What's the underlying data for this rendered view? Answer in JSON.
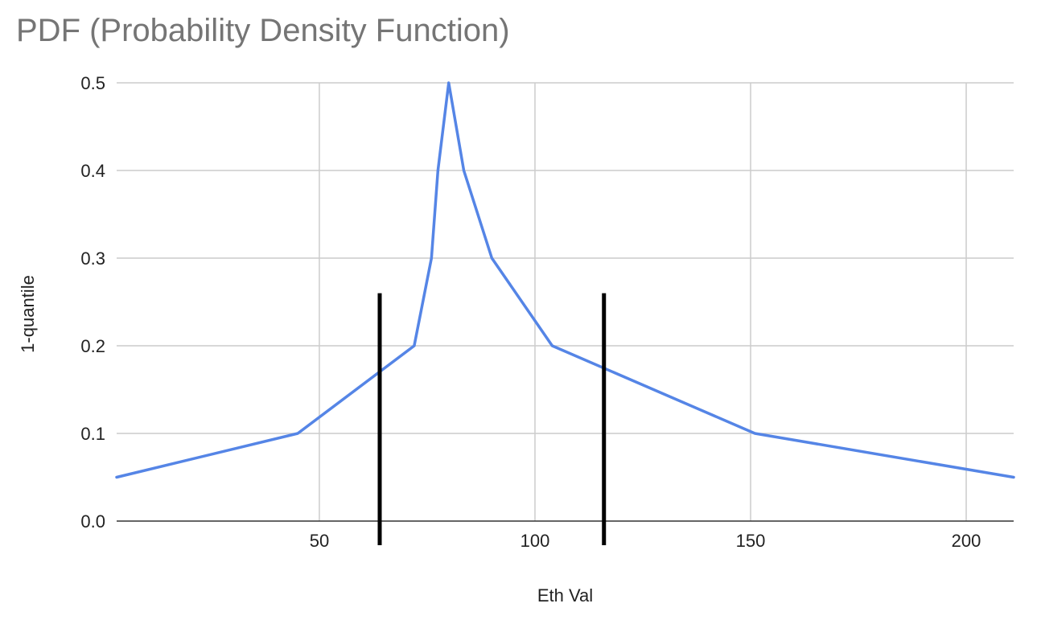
{
  "chart_data": {
    "type": "line",
    "title": "PDF (Probability Density Function)",
    "xlabel": "Eth Val",
    "ylabel": "1-quantile",
    "xlim": [
      3,
      211
    ],
    "ylim": [
      0,
      0.5
    ],
    "x_ticks": [
      50,
      100,
      150,
      200
    ],
    "y_ticks": [
      "0.0",
      "0.1",
      "0.2",
      "0.3",
      "0.4",
      "0.5"
    ],
    "grid": true,
    "legend": "none",
    "colors": {
      "line": "#5585e6",
      "marker": "#000000",
      "grid": "#cccccc",
      "axis": "#333333"
    },
    "series": [
      {
        "x": [
          3,
          45,
          72,
          76,
          77.5,
          80,
          83.5,
          90,
          104,
          151,
          211
        ],
        "y": [
          0.05,
          0.1,
          0.2,
          0.3,
          0.4,
          0.5,
          0.4,
          0.3,
          0.2,
          0.1,
          0.05
        ]
      }
    ],
    "vertical_markers": [
      {
        "x": 64,
        "y_top": 0.26
      },
      {
        "x": 116,
        "y_top": 0.26
      }
    ]
  }
}
